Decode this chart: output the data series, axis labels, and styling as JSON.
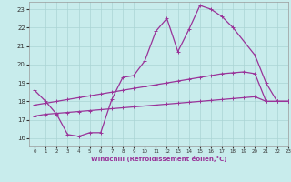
{
  "xlabel": "Windchill (Refroidissement éolien,°C)",
  "bg_color": "#c8ecec",
  "grid_color": "#aad4d4",
  "line_color": "#993399",
  "xlim": [
    -0.5,
    23
  ],
  "ylim": [
    15.6,
    23.4
  ],
  "xticks": [
    0,
    1,
    2,
    3,
    4,
    5,
    6,
    7,
    8,
    9,
    10,
    11,
    12,
    13,
    14,
    15,
    16,
    17,
    18,
    19,
    20,
    21,
    22,
    23
  ],
  "yticks": [
    16,
    17,
    18,
    19,
    20,
    21,
    22,
    23
  ],
  "line1_x": [
    0,
    1,
    2,
    3,
    4,
    5,
    6,
    7,
    8,
    9,
    10,
    11,
    12,
    13,
    14,
    15,
    16,
    17,
    18,
    20,
    21,
    22,
    23
  ],
  "line1_y": [
    18.6,
    18.0,
    17.3,
    16.2,
    16.1,
    16.3,
    16.3,
    18.1,
    19.3,
    19.4,
    20.2,
    21.8,
    22.5,
    20.7,
    21.9,
    23.2,
    23.0,
    22.6,
    22.0,
    20.5,
    19.0,
    18.0,
    18.0
  ],
  "line2_x": [
    0,
    1,
    2,
    3,
    4,
    5,
    6,
    7,
    8,
    9,
    10,
    11,
    12,
    13,
    14,
    15,
    16,
    17,
    18,
    19,
    20,
    21,
    22,
    23
  ],
  "line2_y": [
    17.8,
    17.9,
    18.0,
    18.1,
    18.2,
    18.3,
    18.4,
    18.5,
    18.6,
    18.7,
    18.8,
    18.9,
    19.0,
    19.1,
    19.2,
    19.3,
    19.4,
    19.5,
    19.55,
    19.6,
    19.5,
    18.0,
    18.0,
    18.0
  ],
  "line3_x": [
    0,
    1,
    2,
    3,
    4,
    5,
    6,
    7,
    8,
    9,
    10,
    11,
    12,
    13,
    14,
    15,
    16,
    17,
    18,
    19,
    20,
    21,
    22,
    23
  ],
  "line3_y": [
    17.2,
    17.3,
    17.35,
    17.4,
    17.45,
    17.5,
    17.55,
    17.6,
    17.65,
    17.7,
    17.75,
    17.8,
    17.85,
    17.9,
    17.95,
    18.0,
    18.05,
    18.1,
    18.15,
    18.2,
    18.25,
    18.0,
    18.0,
    18.0
  ]
}
